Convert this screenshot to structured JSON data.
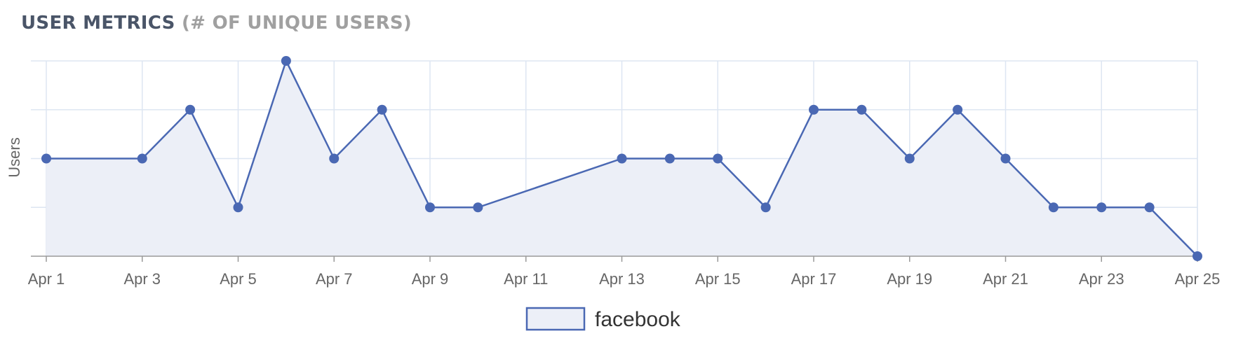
{
  "header": {
    "title_main": "USER METRICS",
    "title_sub": "(# OF UNIQUE USERS)"
  },
  "colors": {
    "line": "#4a68b3",
    "fill": "#eceff7",
    "grid": "#dde6f2",
    "axis": "#9a9a9a"
  },
  "chart_data": {
    "type": "area",
    "title": "USER METRICS (# OF UNIQUE USERS)",
    "ylabel": "Users",
    "xlabel": "",
    "x_tick_labels": [
      "Apr 1",
      "Apr 3",
      "Apr 5",
      "Apr 7",
      "Apr 9",
      "Apr 11",
      "Apr 13",
      "Apr 15",
      "Apr 17",
      "Apr 19",
      "Apr 21",
      "Apr 23",
      "Apr 25"
    ],
    "x_range": [
      1,
      25
    ],
    "y_range": [
      0,
      4
    ],
    "y_tick_labels_shown": false,
    "grid": true,
    "legend_position": "bottom-center",
    "series": [
      {
        "name": "facebook",
        "points": [
          {
            "x": "Apr 1",
            "y": 2
          },
          {
            "x": "Apr 3",
            "y": 2
          },
          {
            "x": "Apr 4",
            "y": 3
          },
          {
            "x": "Apr 5",
            "y": 1
          },
          {
            "x": "Apr 6",
            "y": 4
          },
          {
            "x": "Apr 7",
            "y": 2
          },
          {
            "x": "Apr 8",
            "y": 3
          },
          {
            "x": "Apr 9",
            "y": 1
          },
          {
            "x": "Apr 10",
            "y": 1
          },
          {
            "x": "Apr 13",
            "y": 2
          },
          {
            "x": "Apr 14",
            "y": 2
          },
          {
            "x": "Apr 15",
            "y": 2
          },
          {
            "x": "Apr 16",
            "y": 1
          },
          {
            "x": "Apr 17",
            "y": 3
          },
          {
            "x": "Apr 18",
            "y": 3
          },
          {
            "x": "Apr 19",
            "y": 2
          },
          {
            "x": "Apr 20",
            "y": 3
          },
          {
            "x": "Apr 21",
            "y": 2
          },
          {
            "x": "Apr 22",
            "y": 1
          },
          {
            "x": "Apr 23",
            "y": 1
          },
          {
            "x": "Apr 24",
            "y": 1
          },
          {
            "x": "Apr 25",
            "y": 0
          }
        ]
      }
    ]
  }
}
